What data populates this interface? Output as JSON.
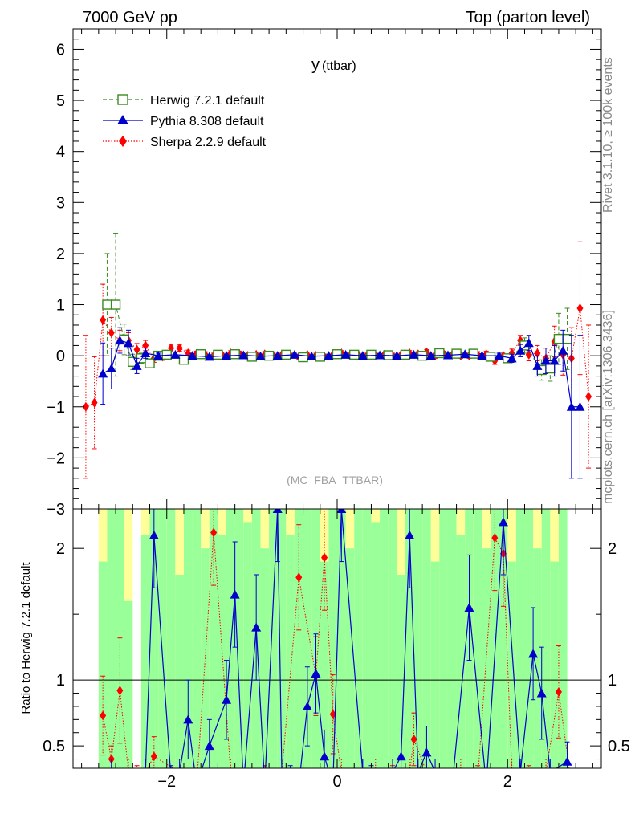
{
  "header": {
    "left": "7000 GeV pp",
    "right": "Top (parton level)"
  },
  "side_labels": {
    "rivet": "Rivet 3.1.10, ≥ 100k events",
    "mcplots": "mcplots.cern.ch [arXiv:1306.3436]"
  },
  "colors": {
    "herwig": "#3a8a1f",
    "pythia": "#0000cc",
    "sherpa": "#ff0000",
    "band_green": "#99ff99",
    "band_yellow": "#ffff99"
  },
  "chart_data": [
    {
      "type": "line",
      "title": "y",
      "title_sub": "(ttbar)",
      "watermark": "(MC_FBA_TTBAR)",
      "xlabel": "",
      "ylabel": "",
      "xlim": [
        -3.1,
        3.1
      ],
      "ylim": [
        -3,
        6.4
      ],
      "yticks": [
        -3,
        -2,
        -1,
        0,
        1,
        2,
        3,
        4,
        5,
        6
      ],
      "ytick_labels": [
        "−3",
        "−2",
        "−1",
        "0",
        "1",
        "2",
        "3",
        "4",
        "5",
        "6"
      ],
      "legend_position": "top-left",
      "series": [
        {
          "name": "Herwig 7.2.1 default",
          "marker": "open-square",
          "x": [
            -2.7,
            -2.6,
            -2.5,
            -2.4,
            -2.3,
            -2.2,
            -2.1,
            -2.0,
            -1.8,
            -1.6,
            -1.4,
            -1.2,
            -1.0,
            -0.8,
            -0.6,
            -0.4,
            -0.2,
            0.0,
            0.2,
            0.4,
            0.6,
            0.8,
            1.0,
            1.2,
            1.4,
            1.6,
            1.8,
            2.0,
            2.2,
            2.4,
            2.5,
            2.6,
            2.7
          ],
          "y": [
            1.0,
            1.0,
            0.32,
            -0.12,
            -0.05,
            -0.15,
            0.0,
            0.02,
            -0.08,
            0.03,
            0.02,
            0.03,
            -0.02,
            0.0,
            0.02,
            -0.03,
            -0.02,
            0.03,
            0.02,
            0.02,
            0.01,
            0.02,
            0.0,
            0.05,
            0.04,
            0.04,
            -0.02,
            -0.05,
            0.2,
            -0.28,
            -0.25,
            0.33,
            0.33
          ],
          "err": [
            1.0,
            1.4,
            0.3,
            0.15,
            0.1,
            0.08,
            0.05,
            0.05,
            0.04,
            0.04,
            0.04,
            0.03,
            0.03,
            0.03,
            0.03,
            0.03,
            0.03,
            0.03,
            0.03,
            0.03,
            0.03,
            0.03,
            0.03,
            0.04,
            0.04,
            0.04,
            0.05,
            0.06,
            0.15,
            0.2,
            0.25,
            0.5,
            0.6
          ]
        },
        {
          "name": "Pythia 8.308 default",
          "marker": "filled-triangle",
          "x": [
            -2.75,
            -2.65,
            -2.55,
            -2.45,
            -2.35,
            -2.25,
            -2.1,
            -1.9,
            -1.7,
            -1.5,
            -1.3,
            -1.1,
            -0.9,
            -0.7,
            -0.5,
            -0.3,
            -0.1,
            0.1,
            0.3,
            0.5,
            0.7,
            0.9,
            1.1,
            1.3,
            1.5,
            1.7,
            1.9,
            2.05,
            2.15,
            2.25,
            2.35,
            2.45,
            2.55,
            2.65,
            2.75,
            2.85
          ],
          "y": [
            -0.35,
            -0.25,
            0.3,
            0.25,
            -0.2,
            0.05,
            0.0,
            0.02,
            0.0,
            -0.02,
            0.0,
            0.01,
            -0.01,
            0.0,
            0.02,
            -0.01,
            0.0,
            0.02,
            0.0,
            0.01,
            0.0,
            0.02,
            0.0,
            0.01,
            0.03,
            0.0,
            0.0,
            -0.05,
            0.1,
            0.25,
            -0.2,
            -0.1,
            -0.1,
            0.1,
            -1.0,
            -1.0
          ],
          "err": [
            0.6,
            0.4,
            0.25,
            0.25,
            0.15,
            0.1,
            0.05,
            0.05,
            0.04,
            0.04,
            0.03,
            0.03,
            0.03,
            0.03,
            0.03,
            0.03,
            0.03,
            0.03,
            0.03,
            0.03,
            0.03,
            0.03,
            0.03,
            0.03,
            0.04,
            0.04,
            0.05,
            0.08,
            0.12,
            0.15,
            0.2,
            0.25,
            0.3,
            0.4,
            1.4,
            1.4
          ]
        },
        {
          "name": "Sherpa 2.2.9 default",
          "marker": "filled-diamond",
          "x": [
            -2.95,
            -2.85,
            -2.75,
            -2.65,
            -2.55,
            -2.45,
            -2.35,
            -2.25,
            -2.15,
            -2.05,
            -1.95,
            -1.85,
            -1.75,
            -1.65,
            -1.55,
            -1.45,
            -1.35,
            -1.25,
            -1.15,
            -1.05,
            -0.95,
            -0.85,
            -0.75,
            -0.65,
            -0.55,
            -0.45,
            -0.35,
            -0.25,
            -0.15,
            -0.05,
            0.05,
            0.15,
            0.25,
            0.35,
            0.45,
            0.55,
            0.65,
            0.75,
            0.85,
            0.95,
            1.05,
            1.15,
            1.25,
            1.35,
            1.45,
            1.55,
            1.65,
            1.75,
            1.85,
            1.95,
            2.05,
            2.15,
            2.25,
            2.35,
            2.45,
            2.55,
            2.65,
            2.75,
            2.85,
            2.95
          ],
          "y": [
            -1.0,
            -0.92,
            0.7,
            0.45,
            0.3,
            0.3,
            0.12,
            0.2,
            -0.05,
            -0.02,
            0.15,
            0.15,
            0.05,
            0.04,
            0.03,
            0.0,
            0.02,
            0.05,
            0.04,
            0.0,
            0.02,
            0.03,
            0.0,
            0.02,
            0.0,
            -0.02,
            0.02,
            0.0,
            -0.02,
            0.02,
            0.05,
            0.0,
            0.02,
            0.0,
            0.0,
            0.02,
            0.0,
            0.02,
            0.05,
            0.03,
            0.07,
            0.0,
            0.04,
            0.02,
            0.0,
            0.0,
            0.02,
            0.03,
            -0.1,
            0.0,
            0.05,
            0.3,
            0.02,
            0.05,
            -0.05,
            0.28,
            0.02,
            -0.05,
            0.93,
            -0.8
          ],
          "err": [
            1.4,
            0.9,
            0.7,
            0.3,
            0.2,
            0.15,
            0.12,
            0.1,
            0.08,
            0.07,
            0.07,
            0.06,
            0.06,
            0.05,
            0.05,
            0.05,
            0.05,
            0.05,
            0.05,
            0.05,
            0.05,
            0.05,
            0.05,
            0.05,
            0.05,
            0.05,
            0.05,
            0.05,
            0.05,
            0.05,
            0.05,
            0.05,
            0.05,
            0.05,
            0.05,
            0.05,
            0.05,
            0.05,
            0.05,
            0.05,
            0.05,
            0.05,
            0.05,
            0.05,
            0.05,
            0.05,
            0.06,
            0.06,
            0.07,
            0.07,
            0.08,
            0.1,
            0.12,
            0.15,
            0.2,
            0.3,
            0.4,
            0.6,
            1.3,
            1.4
          ]
        }
      ]
    },
    {
      "type": "line",
      "title": "",
      "ylabel": "Ratio to Herwig 7.2.1 default",
      "xlabel": "",
      "xlim": [
        -3.1,
        3.1
      ],
      "ylim": [
        0.33,
        2.3
      ],
      "yticks": [
        0.5,
        1,
        2
      ],
      "ytick_labels": [
        "0.5",
        "1",
        "2"
      ],
      "xticks": [
        -2,
        0,
        2
      ],
      "xtick_labels": [
        "−2",
        "0",
        "2"
      ],
      "reference_line": 1,
      "bands": {
        "x_edges": [
          -2.8,
          -2.7,
          -2.6,
          -2.5,
          -2.4,
          -2.3,
          -2.2,
          -2.1,
          -2.0,
          -1.9,
          -1.8,
          -1.7,
          -1.6,
          -1.5,
          -1.4,
          -1.3,
          -1.2,
          -1.1,
          -1.0,
          -0.9,
          -0.8,
          -0.7,
          -0.6,
          -0.5,
          -0.4,
          -0.3,
          -0.2,
          -0.1,
          0.0,
          0.1,
          0.2,
          0.3,
          0.4,
          0.5,
          0.6,
          0.7,
          0.8,
          0.9,
          1.0,
          1.1,
          1.2,
          1.3,
          1.4,
          1.5,
          1.6,
          1.7,
          1.8,
          1.9,
          2.0,
          2.1,
          2.2,
          2.3,
          2.4,
          2.5,
          2.6,
          2.7
        ],
        "green_lo": [
          0.33,
          0.33,
          0.33,
          0.33,
          0.33,
          0.33,
          0.33,
          0.33,
          0.33,
          0.33,
          0.33,
          0.33,
          0.33,
          0.33,
          0.33,
          0.33,
          0.33,
          0.33,
          0.33,
          0.33,
          0.33,
          0.33,
          0.33,
          0.33,
          0.33,
          0.33,
          0.33,
          0.33,
          0.33,
          0.33,
          0.33,
          0.33,
          0.33,
          0.33,
          0.33,
          0.33,
          0.33,
          0.33,
          0.33,
          0.33,
          0.33,
          0.33,
          0.33,
          0.33,
          0.33,
          0.33,
          0.33,
          0.33,
          0.33,
          0.33,
          0.33,
          0.33,
          0.33,
          0.33,
          0.33
        ],
        "green_hi": [
          1.9,
          2.3,
          2.3,
          1.6,
          0.33,
          2.1,
          2.3,
          2.3,
          2.3,
          1.8,
          2.3,
          2.3,
          2.0,
          2.3,
          2.1,
          2.3,
          2.3,
          2.2,
          2.3,
          2.0,
          2.3,
          2.3,
          2.1,
          2.3,
          2.3,
          2.3,
          1.9,
          2.3,
          2.3,
          2.0,
          2.3,
          2.3,
          2.2,
          2.3,
          2.3,
          1.8,
          2.3,
          2.3,
          2.3,
          1.9,
          2.3,
          2.3,
          2.1,
          2.3,
          2.3,
          2.0,
          2.3,
          2.3,
          1.9,
          2.3,
          2.3,
          2.0,
          2.3,
          1.9,
          2.3
        ],
        "yellow_hi": [
          2.3,
          2.3,
          2.3,
          2.3,
          0.33,
          2.3,
          2.3,
          2.3,
          2.3,
          2.3,
          2.3,
          2.3,
          2.3,
          2.3,
          2.3,
          2.3,
          2.3,
          2.3,
          2.3,
          2.3,
          2.3,
          2.3,
          2.3,
          2.3,
          2.3,
          2.3,
          2.3,
          2.3,
          2.3,
          2.3,
          2.3,
          2.3,
          2.3,
          2.3,
          2.3,
          2.3,
          2.3,
          2.3,
          2.3,
          2.3,
          2.3,
          2.3,
          2.3,
          2.3,
          2.3,
          2.3,
          2.3,
          2.3,
          2.3,
          2.3,
          2.3,
          2.3,
          2.3,
          2.3,
          2.3
        ]
      },
      "series": [
        {
          "name": "Pythia 8.308 default",
          "x": [
            -2.65,
            -2.45,
            -2.25,
            -2.15,
            -1.95,
            -1.85,
            -1.75,
            -1.65,
            -1.5,
            -1.3,
            -1.2,
            -1.1,
            -0.95,
            -0.85,
            -0.7,
            -0.65,
            -0.55,
            -0.45,
            -0.35,
            -0.25,
            -0.15,
            -0.05,
            0.05,
            0.3,
            0.4,
            0.55,
            0.65,
            0.75,
            0.85,
            0.95,
            1.05,
            1.15,
            1.35,
            1.55,
            1.75,
            1.95,
            2.15,
            2.3,
            2.4,
            2.5,
            2.7
          ],
          "y": [
            0.3,
            0.2,
            0.3,
            2.1,
            0.25,
            0.3,
            0.7,
            0.2,
            0.5,
            0.85,
            1.65,
            0.2,
            1.4,
            0.2,
            2.3,
            0.3,
            0.25,
            0.2,
            0.8,
            1.05,
            0.42,
            0.2,
            2.3,
            0.3,
            0.25,
            0.2,
            0.3,
            0.42,
            2.1,
            0.3,
            0.45,
            0.3,
            0.2,
            1.55,
            0.2,
            2.2,
            0.3,
            1.2,
            0.9,
            0.3,
            0.38
          ],
          "err": [
            0.1,
            0.1,
            0.1,
            0.4,
            0.1,
            0.1,
            0.3,
            0.1,
            0.2,
            0.3,
            0.4,
            0.1,
            0.4,
            0.1,
            0.4,
            0.1,
            0.1,
            0.1,
            0.3,
            0.3,
            0.2,
            0.1,
            0.4,
            0.1,
            0.1,
            0.1,
            0.1,
            0.2,
            0.4,
            0.1,
            0.2,
            0.1,
            0.1,
            0.4,
            0.1,
            0.4,
            0.1,
            0.35,
            0.35,
            0.1,
            0.15
          ]
        },
        {
          "name": "Sherpa 2.2.9 default",
          "x": [
            -2.75,
            -2.65,
            -2.55,
            -2.45,
            -2.35,
            -2.25,
            -2.15,
            -1.85,
            -1.65,
            -1.45,
            -1.25,
            -1.05,
            -0.85,
            -0.65,
            -0.45,
            -0.25,
            -0.15,
            -0.05,
            0.05,
            0.25,
            0.45,
            0.65,
            0.85,
            0.9,
            1.05,
            1.25,
            1.45,
            1.65,
            1.85,
            1.95,
            2.05,
            2.25,
            2.45,
            2.6,
            2.75
          ],
          "y": [
            0.73,
            0.4,
            0.92,
            0.3,
            0.25,
            0.3,
            0.42,
            0.3,
            0.2,
            2.12,
            0.3,
            0.2,
            0.25,
            0.3,
            1.78,
            1.03,
            1.93,
            0.74,
            0.3,
            0.2,
            0.3,
            0.25,
            0.3,
            0.55,
            0.3,
            0.2,
            0.3,
            0.25,
            2.08,
            1.96,
            0.3,
            0.25,
            0.3,
            0.91,
            0.2
          ],
          "err": [
            0.3,
            0.1,
            0.4,
            0.1,
            0.1,
            0.1,
            0.15,
            0.1,
            0.1,
            0.4,
            0.1,
            0.1,
            0.1,
            0.1,
            0.4,
            0.3,
            0.4,
            0.3,
            0.1,
            0.1,
            0.1,
            0.1,
            0.1,
            0.2,
            0.1,
            0.1,
            0.1,
            0.1,
            0.4,
            0.4,
            0.1,
            0.1,
            0.1,
            0.35,
            0.1
          ]
        }
      ]
    }
  ]
}
